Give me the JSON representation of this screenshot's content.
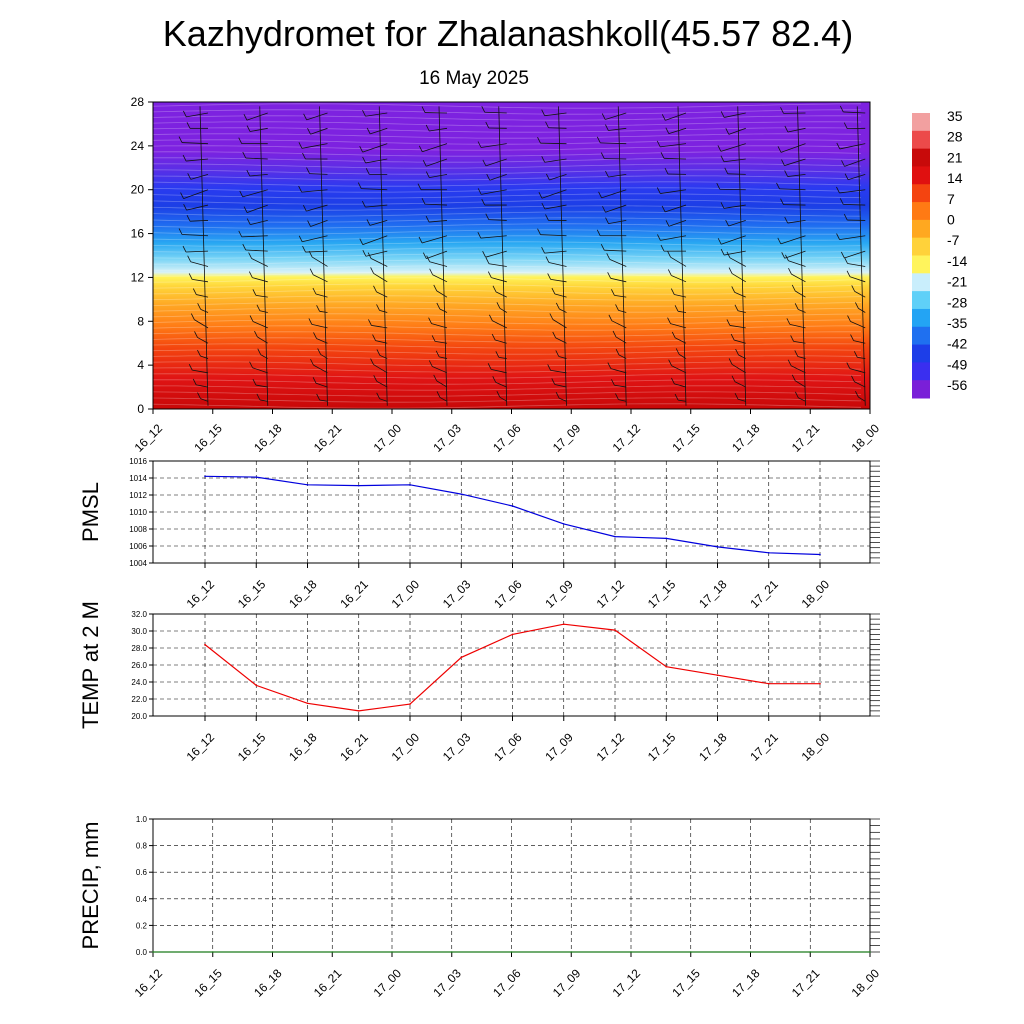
{
  "header": {
    "title": "Kazhydromet for Zhalanashkoll(45.57 82.4)",
    "subtitle": "16 May 2025"
  },
  "time_labels": [
    "16_12",
    "16_15",
    "16_18",
    "16_21",
    "17_00",
    "17_03",
    "17_06",
    "17_09",
    "17_12",
    "17_15",
    "17_18",
    "17_21",
    "18_00"
  ],
  "colors": {
    "pmsl_line": "#0000dd",
    "temp_line": "#ee0000",
    "precip_line": "#1a7a1a",
    "grid": "#000000",
    "colorbar": [
      "#7a1fd8",
      "#3a2ff0",
      "#1d3ee8",
      "#1f70f0",
      "#23a4f4",
      "#5fd0f8",
      "#c9eefc",
      "#fff45c",
      "#ffd23a",
      "#ffa820",
      "#ff7a14",
      "#f44410",
      "#e01010",
      "#c80a0a",
      "#ec4a4a",
      "#f2a0a0"
    ]
  },
  "chart_data": [
    {
      "type": "heatmap",
      "name": "cross-section",
      "x": [
        "16_12",
        "16_15",
        "16_18",
        "16_21",
        "17_00",
        "17_03",
        "17_06",
        "17_09",
        "17_12",
        "17_15",
        "17_18",
        "17_21",
        "18_00"
      ],
      "ylim": [
        0,
        28
      ],
      "yticks": [
        0,
        4,
        8,
        12,
        16,
        20,
        24,
        28
      ],
      "colorbar_labels": [
        "35",
        "28",
        "21",
        "14",
        "7",
        "0",
        "-7",
        "-14",
        "-21",
        "-28",
        "-35",
        "-42",
        "-49",
        "-56"
      ],
      "description_bands": [
        {
          "y_from": 0,
          "y_to": 6,
          "value": 28
        },
        {
          "y_from": 6,
          "y_to": 12,
          "value": 7
        },
        {
          "y_from": 12,
          "y_to": 16,
          "value": -28
        },
        {
          "y_from": 16,
          "y_to": 22,
          "value": -49
        },
        {
          "y_from": 22,
          "y_to": 28,
          "value": -56
        }
      ]
    },
    {
      "type": "line",
      "ylabel": "PMSL",
      "categories": [
        "16_12",
        "16_15",
        "16_18",
        "16_21",
        "17_00",
        "17_03",
        "17_06",
        "17_09",
        "17_12",
        "17_15",
        "17_18",
        "17_21",
        "18_00"
      ],
      "values": [
        1014.2,
        1014.1,
        1013.2,
        1013.1,
        1013.2,
        1012.1,
        1010.7,
        1008.6,
        1007.1,
        1006.9,
        1005.9,
        1005.2,
        1005.0
      ],
      "ylim": [
        1004,
        1016
      ],
      "yticks": [
        "1004",
        "1006",
        "1008",
        "1010",
        "1012",
        "1014",
        "1016"
      ],
      "grid": true
    },
    {
      "type": "line",
      "ylabel": "TEMP at 2 M",
      "categories": [
        "16_12",
        "16_15",
        "16_18",
        "16_21",
        "17_00",
        "17_03",
        "17_06",
        "17_09",
        "17_12",
        "17_15",
        "17_18",
        "17_21",
        "18_00"
      ],
      "values": [
        28.4,
        23.6,
        21.5,
        20.6,
        21.4,
        26.9,
        29.6,
        30.8,
        30.1,
        25.8,
        24.8,
        23.8,
        23.8
      ],
      "ylim": [
        20,
        32
      ],
      "yticks": [
        "20.0",
        "22.0",
        "24.0",
        "26.0",
        "28.0",
        "30.0",
        "32.0"
      ],
      "grid": true
    },
    {
      "type": "line",
      "ylabel": "PRECIP, mm",
      "categories": [
        "16_12",
        "16_15",
        "16_18",
        "16_21",
        "17_00",
        "17_03",
        "17_06",
        "17_09",
        "17_12",
        "17_15",
        "17_18",
        "17_21",
        "18_00"
      ],
      "values": [
        0,
        0,
        0,
        0,
        0,
        0,
        0,
        0,
        0,
        0,
        0,
        0,
        0
      ],
      "ylim": [
        0,
        1
      ],
      "yticks": [
        "0.0",
        "0.2",
        "0.4",
        "0.6",
        "0.8",
        "1.0"
      ],
      "grid": true
    }
  ]
}
